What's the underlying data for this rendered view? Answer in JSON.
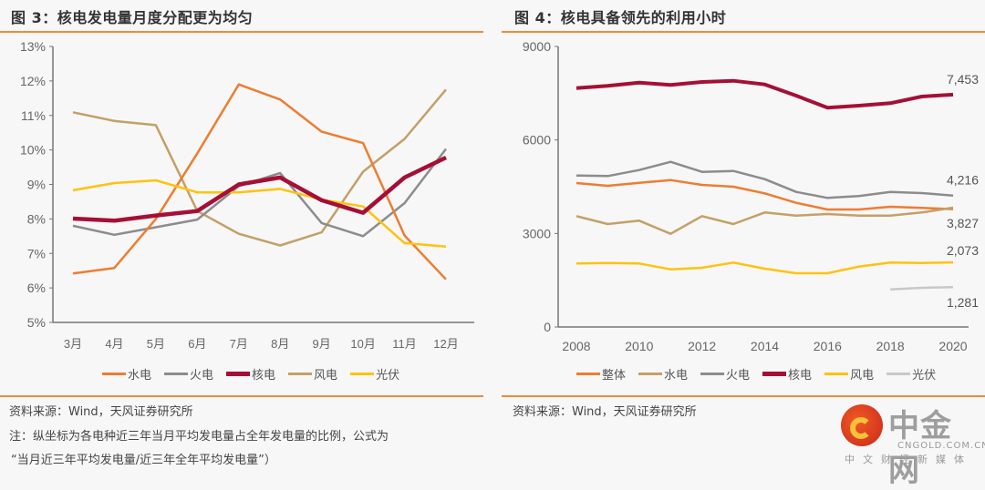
{
  "left": {
    "title": "图 3：核电发电量月度分配更为均匀",
    "source": "资料来源：Wind，天风证券研究所",
    "note_line1": "注：纵坐标为各电种近三年当月平均发电量占全年发电量的比例，公式为",
    "note_line2": "“当月近三年平均发电量/近三年全年平均发电量”）"
  },
  "right": {
    "title": "图 4：核电具备领先的利用小时",
    "source": "资料来源：Wind，天风证券研究所"
  },
  "logo": {
    "name": "中金网",
    "domain": "CNGOLD.COM.CN",
    "slogan": "中文财经新媒体"
  },
  "chart_data": [
    {
      "type": "line",
      "title": "图 3：核电发电量月度分配更为均匀",
      "xlabel": "",
      "ylabel": "",
      "categories": [
        "3月",
        "4月",
        "5月",
        "6月",
        "7月",
        "8月",
        "9月",
        "10月",
        "11月",
        "12月"
      ],
      "ylim": [
        5,
        13
      ],
      "yticks": [
        "5%",
        "6%",
        "7%",
        "8%",
        "9%",
        "10%",
        "11%",
        "12%",
        "13%"
      ],
      "y_unit": "%",
      "grid": false,
      "legend_position": "bottom",
      "series": [
        {
          "name": "水电",
          "color": "#ed7d31",
          "values": [
            6.42,
            6.58,
            8.0,
            9.9,
            11.9,
            11.46,
            10.53,
            10.2,
            7.52,
            6.25
          ]
        },
        {
          "name": "火电",
          "color": "#8c8c8c",
          "values": [
            7.8,
            7.54,
            7.76,
            7.98,
            8.95,
            9.33,
            7.88,
            7.5,
            8.46,
            10.03
          ]
        },
        {
          "name": "核电",
          "color": "#a50f36",
          "thick": true,
          "values": [
            8.01,
            7.95,
            8.1,
            8.23,
            9.0,
            9.2,
            8.54,
            8.18,
            9.2,
            9.78
          ]
        },
        {
          "name": "风电",
          "color": "#c3a068",
          "values": [
            11.09,
            10.84,
            10.72,
            8.23,
            7.57,
            7.23,
            7.61,
            9.37,
            10.32,
            11.75
          ]
        },
        {
          "name": "光伏",
          "color": "#ffc20e",
          "values": [
            8.83,
            9.04,
            9.12,
            8.77,
            8.77,
            8.87,
            8.56,
            8.36,
            7.3,
            7.2
          ]
        }
      ]
    },
    {
      "type": "line",
      "title": "图 4：核电具备领先的利用小时",
      "xlabel": "",
      "ylabel": "",
      "x": [
        2008,
        2009,
        2010,
        2011,
        2012,
        2013,
        2014,
        2015,
        2016,
        2017,
        2018,
        2019,
        2020
      ],
      "xticks": [
        "2008",
        "2010",
        "2012",
        "2014",
        "2016",
        "2018",
        "2020"
      ],
      "ylim": [
        0,
        9000
      ],
      "yticks": [
        "0",
        "3000",
        "6000",
        "9000"
      ],
      "grid": false,
      "legend_position": "bottom",
      "series": [
        {
          "name": "整体",
          "color": "#ed7d31",
          "values": [
            4617,
            4529,
            4626,
            4714,
            4558,
            4500,
            4287,
            3983,
            3769,
            3769,
            3857,
            3818,
            3780
          ]
        },
        {
          "name": "水电",
          "color": "#c3a068",
          "values": [
            3556,
            3302,
            3410,
            2989,
            3556,
            3302,
            3673,
            3574,
            3623,
            3574,
            3574,
            3673,
            3827
          ]
        },
        {
          "name": "火电",
          "color": "#8c8c8c",
          "values": [
            4860,
            4841,
            5035,
            5298,
            4977,
            5006,
            4743,
            4334,
            4140,
            4199,
            4334,
            4295,
            4216
          ]
        },
        {
          "name": "核电",
          "color": "#a50f36",
          "thick": true,
          "values": [
            7664,
            7735,
            7840,
            7764,
            7860,
            7898,
            7782,
            7422,
            7033,
            7100,
            7179,
            7393,
            7453
          ]
        },
        {
          "name": "风电",
          "color": "#ffc20e",
          "values": [
            2037,
            2054,
            2037,
            1850,
            1900,
            2066,
            1870,
            1724,
            1724,
            1937,
            2066,
            2054,
            2073
          ]
        },
        {
          "name": "光伏",
          "color": "#c8c8c8",
          "values": [
            null,
            null,
            null,
            null,
            null,
            null,
            null,
            null,
            null,
            null,
            1207,
            1256,
            1281
          ]
        }
      ],
      "annotations": [
        {
          "series": "核电",
          "x": 2020,
          "text": "7,453"
        },
        {
          "series": "火电",
          "x": 2020,
          "text": "4,216"
        },
        {
          "series": "水电",
          "x": 2020,
          "text": "3,827"
        },
        {
          "series": "风电",
          "x": 2020,
          "text": "2,073"
        },
        {
          "series": "光伏",
          "x": 2020,
          "text": "1,281"
        }
      ]
    }
  ]
}
